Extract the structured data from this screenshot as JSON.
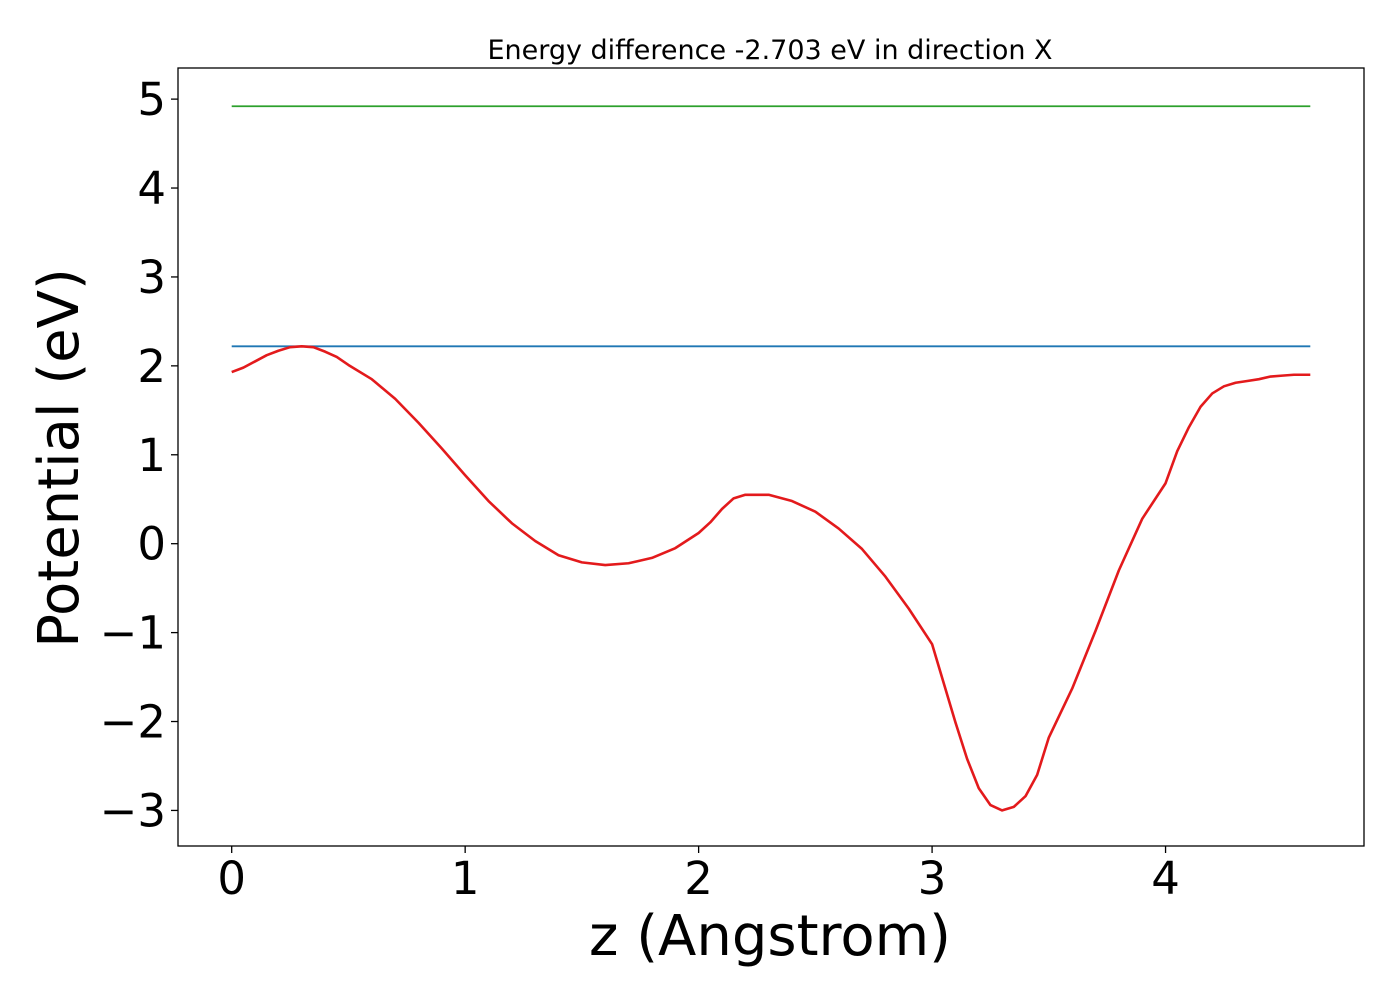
{
  "chart_data": {
    "type": "line",
    "title": "Energy difference -2.703 eV in direction X",
    "xlabel": "z (Angstrom)",
    "ylabel": "Potential (eV)",
    "xlim": [
      -0.23,
      4.85
    ],
    "ylim": [
      -3.4,
      5.35
    ],
    "xticks": [
      0,
      1,
      2,
      3,
      4
    ],
    "yticks": [
      -3,
      -2,
      -1,
      0,
      1,
      2,
      3,
      4,
      5
    ],
    "xtick_labels": [
      "0",
      "1",
      "2",
      "3",
      "4"
    ],
    "ytick_labels": [
      "−3",
      "−2",
      "−1",
      "0",
      "1",
      "2",
      "3",
      "4",
      "5"
    ],
    "grid": false,
    "legend": "none",
    "series": [
      {
        "color": "#2ca02c",
        "x": [
          0,
          4.62
        ],
        "y": [
          4.92,
          4.92
        ]
      },
      {
        "color": "#1f77b4",
        "x": [
          0,
          4.62
        ],
        "y": [
          2.22,
          2.22
        ]
      },
      {
        "color": "#e31a1c",
        "x": [
          0,
          0.05,
          0.1,
          0.15,
          0.2,
          0.25,
          0.3,
          0.35,
          0.4,
          0.45,
          0.5,
          0.6,
          0.7,
          0.8,
          0.9,
          1.0,
          1.1,
          1.2,
          1.3,
          1.4,
          1.5,
          1.6,
          1.7,
          1.8,
          1.9,
          2.0,
          2.05,
          2.1,
          2.15,
          2.2,
          2.3,
          2.4,
          2.5,
          2.6,
          2.7,
          2.8,
          2.9,
          3.0,
          3.05,
          3.1,
          3.15,
          3.2,
          3.25,
          3.3,
          3.35,
          3.4,
          3.45,
          3.5,
          3.6,
          3.7,
          3.8,
          3.9,
          4.0,
          4.05,
          4.1,
          4.15,
          4.2,
          4.25,
          4.3,
          4.35,
          4.4,
          4.45,
          4.5,
          4.55,
          4.62
        ],
        "y": [
          1.93,
          1.98,
          2.05,
          2.12,
          2.17,
          2.21,
          2.22,
          2.21,
          2.16,
          2.1,
          2.01,
          1.85,
          1.63,
          1.36,
          1.07,
          0.77,
          0.48,
          0.23,
          0.03,
          -0.13,
          -0.21,
          -0.24,
          -0.22,
          -0.16,
          -0.05,
          0.12,
          0.24,
          0.39,
          0.51,
          0.55,
          0.55,
          0.48,
          0.36,
          0.17,
          -0.06,
          -0.37,
          -0.73,
          -1.13,
          -1.57,
          -2.01,
          -2.42,
          -2.75,
          -2.94,
          -3.0,
          -2.96,
          -2.84,
          -2.6,
          -2.18,
          -1.63,
          -0.98,
          -0.3,
          0.28,
          0.68,
          1.04,
          1.31,
          1.54,
          1.69,
          1.77,
          1.81,
          1.83,
          1.85,
          1.88,
          1.89,
          1.9,
          1.9
        ]
      }
    ]
  }
}
